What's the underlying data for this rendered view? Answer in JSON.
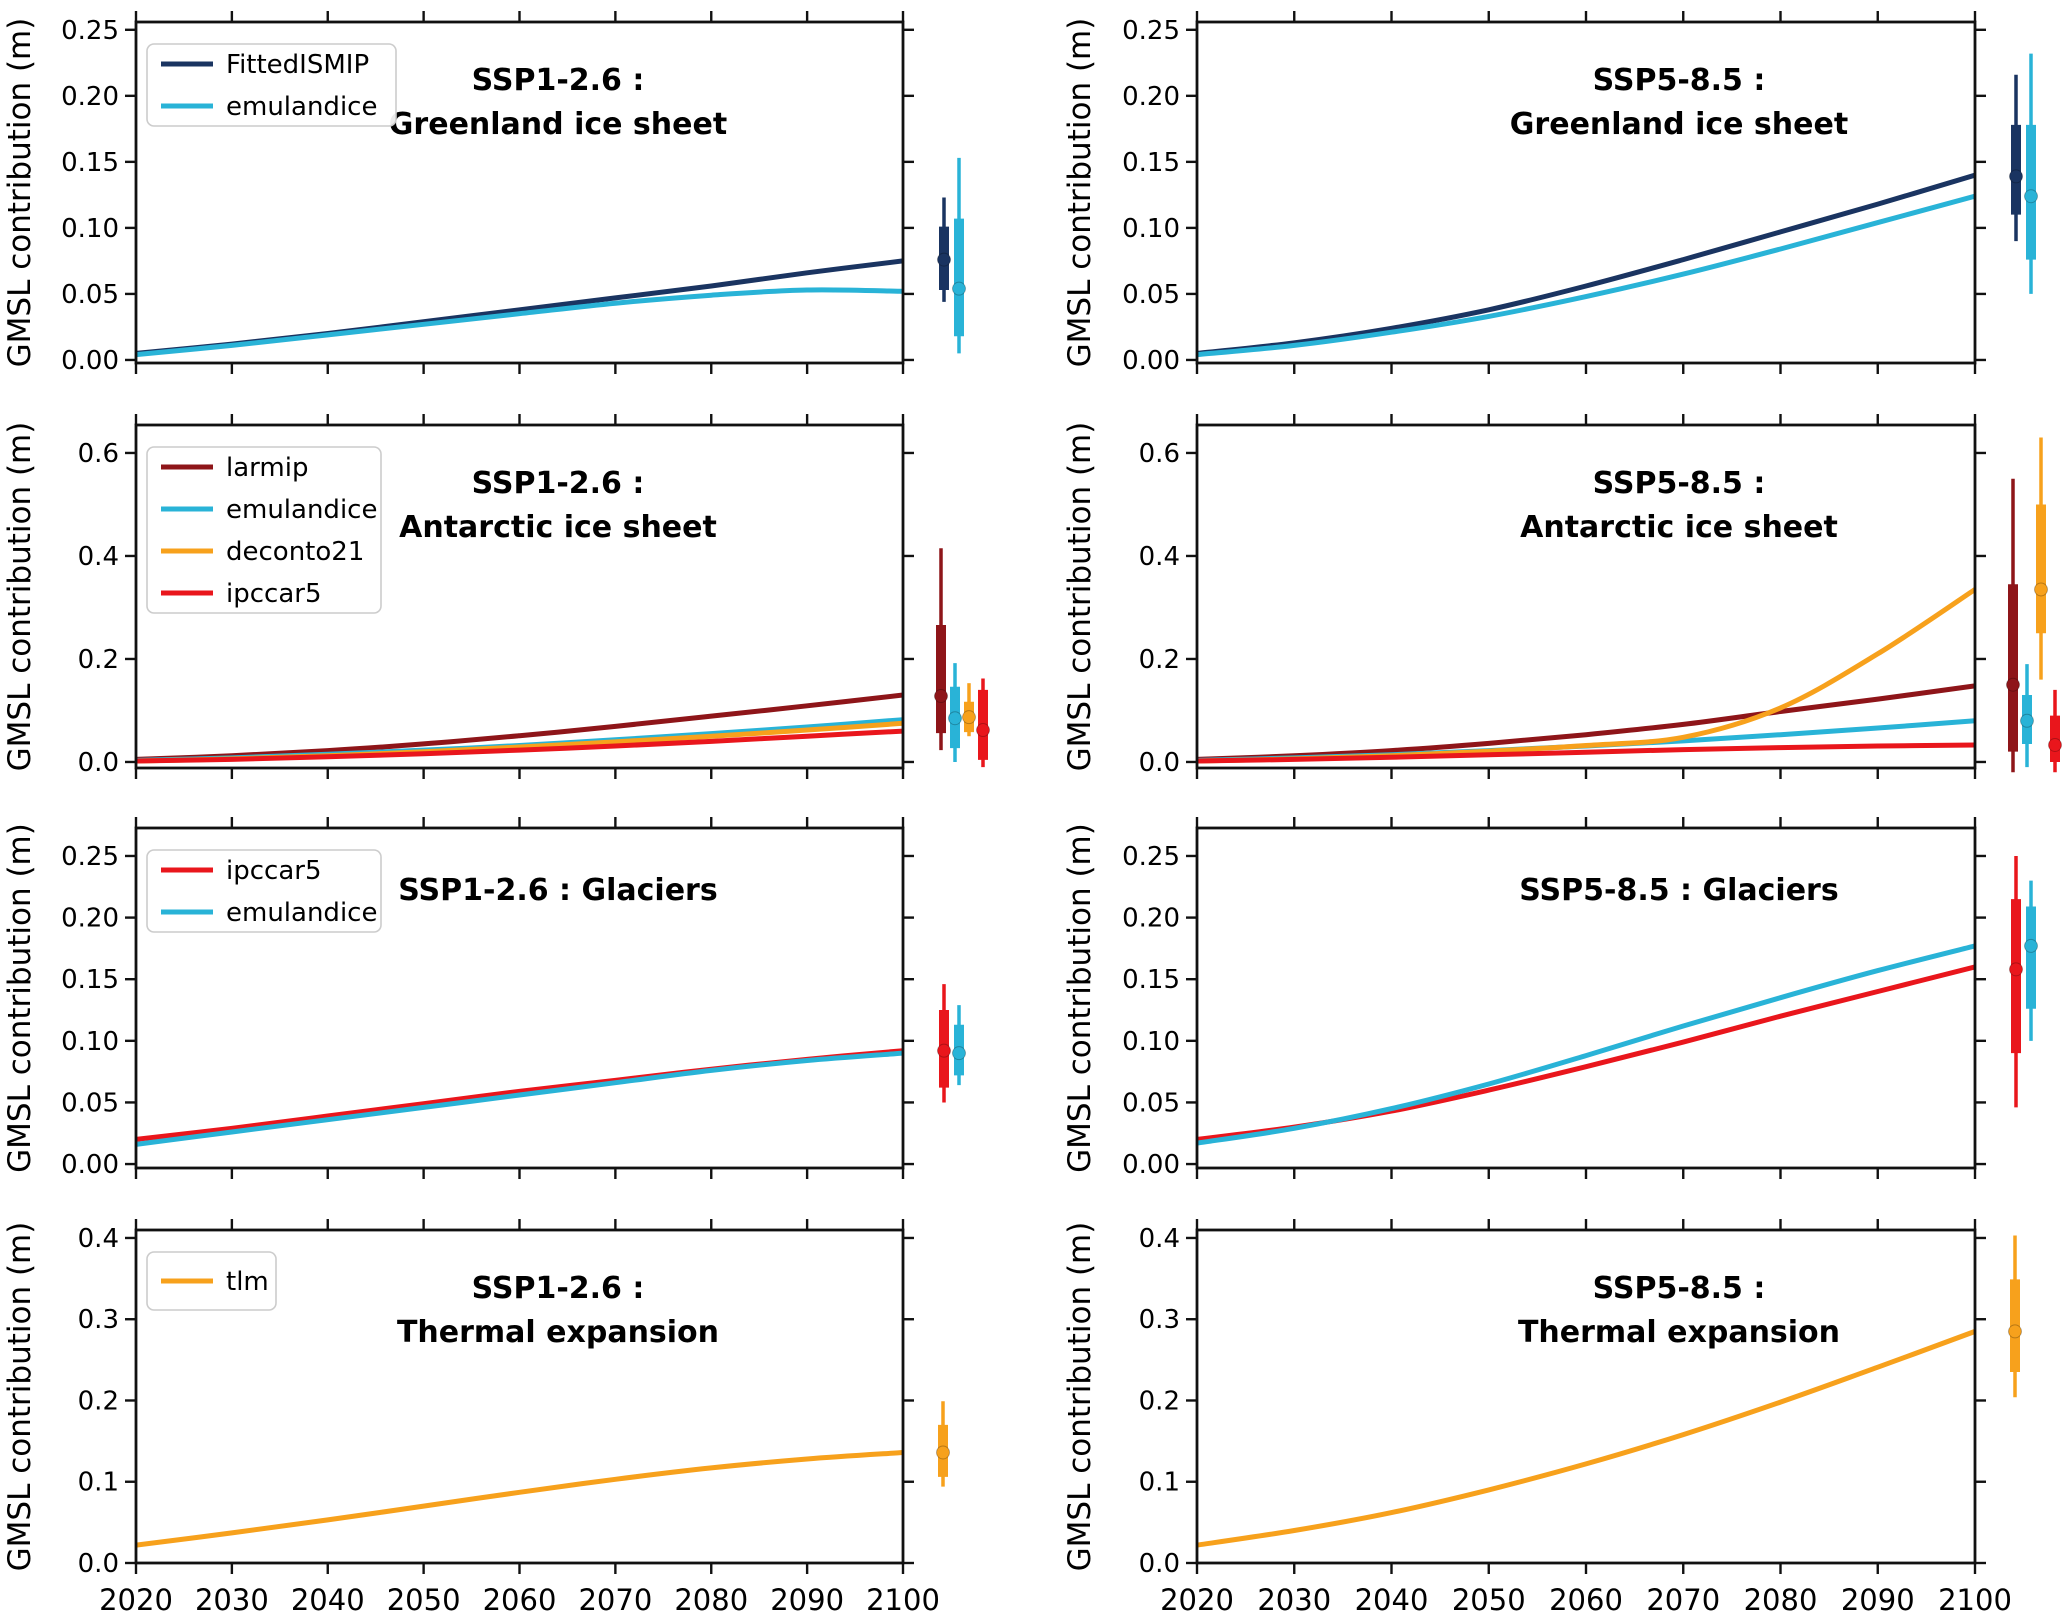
{
  "figure": {
    "ylabel": "GMSL contribution (m)",
    "x_ticks": [
      2020,
      2030,
      2040,
      2050,
      2060,
      2070,
      2080,
      2090,
      2100
    ],
    "x_tick_labels": [
      "2020",
      "2030",
      "2040",
      "2050",
      "2060",
      "2070",
      "2080",
      "2090",
      "2100"
    ],
    "colors": {
      "FittedISMIP": "#1a3461",
      "emulandice": "#29b3d7",
      "larmip": "#8e1519",
      "deconto21": "#f7a11c",
      "ipccar5": "#e9161c",
      "tlm": "#f7a11c"
    }
  },
  "chart_data": [
    {
      "type": "line",
      "id": "ssp126_greenland",
      "title": [
        "SSP1-2.6 :",
        "Greenland ice sheet"
      ],
      "ylabel": "GMSL contribution (m)",
      "xlim": [
        2020,
        2100
      ],
      "ylim": [
        0,
        0.25
      ],
      "yticks": [
        0,
        0.05,
        0.1,
        0.15,
        0.2,
        0.25
      ],
      "ytick_decimals": 2,
      "show_x_tick_labels": false,
      "legend": true,
      "x": [
        2020,
        2030,
        2040,
        2050,
        2060,
        2070,
        2080,
        2090,
        2100
      ],
      "series": [
        {
          "name": "FittedISMIP",
          "color": "#1a3461",
          "values": [
            0.005,
            0.012,
            0.02,
            0.029,
            0.038,
            0.047,
            0.056,
            0.066,
            0.075
          ],
          "errorbar": {
            "median": 0.076,
            "likely": [
              0.053,
              0.101
            ],
            "range": [
              0.044,
              0.123
            ]
          }
        },
        {
          "name": "emulandice",
          "color": "#29b3d7",
          "values": [
            0.004,
            0.011,
            0.019,
            0.027,
            0.035,
            0.043,
            0.049,
            0.053,
            0.052
          ],
          "errorbar": {
            "median": 0.054,
            "likely": [
              0.018,
              0.107
            ],
            "range": [
              0.005,
              0.153
            ]
          }
        }
      ]
    },
    {
      "type": "line",
      "id": "ssp585_greenland",
      "title": [
        "SSP5-8.5 :",
        "Greenland ice sheet"
      ],
      "ylabel": "GMSL contribution (m)",
      "xlim": [
        2020,
        2100
      ],
      "ylim": [
        0,
        0.25
      ],
      "yticks": [
        0,
        0.05,
        0.1,
        0.15,
        0.2,
        0.25
      ],
      "ytick_decimals": 2,
      "show_x_tick_labels": false,
      "legend": false,
      "x": [
        2020,
        2030,
        2040,
        2050,
        2060,
        2070,
        2080,
        2090,
        2100
      ],
      "series": [
        {
          "name": "FittedISMIP",
          "color": "#1a3461",
          "values": [
            0.005,
            0.013,
            0.024,
            0.038,
            0.056,
            0.076,
            0.097,
            0.118,
            0.14
          ],
          "errorbar": {
            "median": 0.139,
            "likely": [
              0.11,
              0.178
            ],
            "range": [
              0.09,
              0.216
            ]
          }
        },
        {
          "name": "emulandice",
          "color": "#29b3d7",
          "values": [
            0.004,
            0.011,
            0.021,
            0.033,
            0.048,
            0.065,
            0.084,
            0.104,
            0.124
          ],
          "errorbar": {
            "median": 0.124,
            "likely": [
              0.076,
              0.178
            ],
            "range": [
              0.05,
              0.232
            ]
          }
        }
      ]
    },
    {
      "type": "line",
      "id": "ssp126_antarctic",
      "title": [
        "SSP1-2.6 :",
        "Antarctic ice sheet"
      ],
      "ylabel": "GMSL contribution (m)",
      "xlim": [
        2020,
        2100
      ],
      "ylim": [
        0,
        0.6
      ],
      "yticks": [
        0,
        0.2,
        0.4,
        0.6
      ],
      "ytick_decimals": 1,
      "show_x_tick_labels": false,
      "legend": true,
      "x": [
        2020,
        2030,
        2040,
        2050,
        2060,
        2070,
        2080,
        2090,
        2100
      ],
      "series": [
        {
          "name": "larmip",
          "color": "#8e1519",
          "values": [
            0.005,
            0.012,
            0.022,
            0.035,
            0.051,
            0.069,
            0.089,
            0.109,
            0.13
          ],
          "errorbar": {
            "median": 0.128,
            "likely": [
              0.056,
              0.266
            ],
            "range": [
              0.023,
              0.415
            ]
          }
        },
        {
          "name": "emulandice",
          "color": "#29b3d7",
          "values": [
            0.003,
            0.008,
            0.015,
            0.023,
            0.032,
            0.043,
            0.055,
            0.068,
            0.082
          ],
          "errorbar": {
            "median": 0.085,
            "likely": [
              0.027,
              0.146
            ],
            "range": [
              0.0,
              0.192
            ]
          }
        },
        {
          "name": "deconto21",
          "color": "#f7a11c",
          "values": [
            0.002,
            0.006,
            0.012,
            0.02,
            0.029,
            0.039,
            0.05,
            0.062,
            0.075
          ],
          "errorbar": {
            "median": 0.087,
            "likely": [
              0.058,
              0.117
            ],
            "range": [
              0.05,
              0.153
            ]
          }
        },
        {
          "name": "ipccar5",
          "color": "#e9161c",
          "values": [
            0.002,
            0.005,
            0.01,
            0.016,
            0.023,
            0.031,
            0.04,
            0.05,
            0.06
          ],
          "errorbar": {
            "median": 0.062,
            "likely": [
              0.004,
              0.14
            ],
            "range": [
              -0.01,
              0.162
            ]
          }
        }
      ]
    },
    {
      "type": "line",
      "id": "ssp585_antarctic",
      "title": [
        "SSP5-8.5 :",
        "Antarctic ice sheet"
      ],
      "ylabel": "GMSL contribution (m)",
      "xlim": [
        2020,
        2100
      ],
      "ylim": [
        0,
        0.6
      ],
      "yticks": [
        0,
        0.2,
        0.4,
        0.6
      ],
      "ytick_decimals": 1,
      "show_x_tick_labels": false,
      "legend": false,
      "x": [
        2020,
        2030,
        2040,
        2050,
        2060,
        2070,
        2080,
        2090,
        2100
      ],
      "series": [
        {
          "name": "larmip",
          "color": "#8e1519",
          "values": [
            0.005,
            0.012,
            0.022,
            0.036,
            0.053,
            0.073,
            0.098,
            0.122,
            0.148
          ],
          "errorbar": {
            "median": 0.15,
            "likely": [
              0.02,
              0.345
            ],
            "range": [
              -0.02,
              0.55
            ]
          }
        },
        {
          "name": "emulandice",
          "color": "#29b3d7",
          "values": [
            0.003,
            0.008,
            0.014,
            0.022,
            0.031,
            0.041,
            0.053,
            0.066,
            0.08
          ],
          "errorbar": {
            "median": 0.08,
            "likely": [
              0.035,
              0.13
            ],
            "range": [
              -0.01,
              0.19
            ]
          }
        },
        {
          "name": "deconto21",
          "color": "#f7a11c",
          "values": [
            0.002,
            0.006,
            0.012,
            0.021,
            0.032,
            0.048,
            0.105,
            0.21,
            0.335
          ],
          "errorbar": {
            "median": 0.335,
            "likely": [
              0.25,
              0.5
            ],
            "range": [
              0.16,
              0.63
            ]
          }
        },
        {
          "name": "ipccar5",
          "color": "#e9161c",
          "values": [
            0.002,
            0.005,
            0.009,
            0.014,
            0.019,
            0.024,
            0.028,
            0.031,
            0.033
          ],
          "errorbar": {
            "median": 0.033,
            "likely": [
              0.0,
              0.09
            ],
            "range": [
              -0.02,
              0.14
            ]
          }
        }
      ]
    },
    {
      "type": "line",
      "id": "ssp126_glaciers",
      "title": [
        "SSP1-2.6 : Glaciers"
      ],
      "ylabel": "GMSL contribution (m)",
      "xlim": [
        2020,
        2100
      ],
      "ylim": [
        0,
        0.25
      ],
      "yticks": [
        0,
        0.05,
        0.1,
        0.15,
        0.2,
        0.25
      ],
      "ytick_decimals": 2,
      "show_x_tick_labels": false,
      "legend": true,
      "x": [
        2020,
        2030,
        2040,
        2050,
        2060,
        2070,
        2080,
        2090,
        2100
      ],
      "series": [
        {
          "name": "ipccar5",
          "color": "#e9161c",
          "values": [
            0.02,
            0.029,
            0.039,
            0.049,
            0.059,
            0.068,
            0.077,
            0.085,
            0.092
          ],
          "errorbar": {
            "median": 0.092,
            "likely": [
              0.062,
              0.125
            ],
            "range": [
              0.05,
              0.146
            ]
          }
        },
        {
          "name": "emulandice",
          "color": "#29b3d7",
          "values": [
            0.016,
            0.026,
            0.036,
            0.046,
            0.056,
            0.066,
            0.076,
            0.084,
            0.09
          ],
          "errorbar": {
            "median": 0.09,
            "likely": [
              0.072,
              0.113
            ],
            "range": [
              0.064,
              0.129
            ]
          }
        }
      ]
    },
    {
      "type": "line",
      "id": "ssp585_glaciers",
      "title": [
        "SSP5-8.5 : Glaciers"
      ],
      "ylabel": "GMSL contribution (m)",
      "xlim": [
        2020,
        2100
      ],
      "ylim": [
        0,
        0.25
      ],
      "yticks": [
        0,
        0.05,
        0.1,
        0.15,
        0.2,
        0.25
      ],
      "ytick_decimals": 2,
      "show_x_tick_labels": false,
      "legend": false,
      "x": [
        2020,
        2030,
        2040,
        2050,
        2060,
        2070,
        2080,
        2090,
        2100
      ],
      "series": [
        {
          "name": "ipccar5",
          "color": "#e9161c",
          "values": [
            0.02,
            0.03,
            0.043,
            0.06,
            0.079,
            0.099,
            0.12,
            0.14,
            0.16
          ],
          "errorbar": {
            "median": 0.158,
            "likely": [
              0.09,
              0.215
            ],
            "range": [
              0.046,
              0.25
            ]
          }
        },
        {
          "name": "emulandice",
          "color": "#29b3d7",
          "values": [
            0.017,
            0.029,
            0.045,
            0.065,
            0.088,
            0.112,
            0.135,
            0.157,
            0.177
          ],
          "errorbar": {
            "median": 0.177,
            "likely": [
              0.126,
              0.209
            ],
            "range": [
              0.1,
              0.23
            ]
          }
        }
      ]
    },
    {
      "type": "line",
      "id": "ssp126_thermal",
      "title": [
        "SSP1-2.6 :",
        "Thermal expansion"
      ],
      "ylabel": "GMSL contribution (m)",
      "xlim": [
        2020,
        2100
      ],
      "ylim": [
        0,
        0.4
      ],
      "yticks": [
        0,
        0.1,
        0.2,
        0.3,
        0.4
      ],
      "ytick_decimals": 1,
      "show_x_tick_labels": true,
      "legend": true,
      "x": [
        2020,
        2030,
        2040,
        2050,
        2060,
        2070,
        2080,
        2090,
        2100
      ],
      "series": [
        {
          "name": "tlm",
          "color": "#f7a11c",
          "values": [
            0.022,
            0.037,
            0.053,
            0.07,
            0.087,
            0.103,
            0.117,
            0.128,
            0.136
          ],
          "errorbar": {
            "median": 0.136,
            "likely": [
              0.106,
              0.17
            ],
            "range": [
              0.094,
              0.199
            ]
          }
        }
      ]
    },
    {
      "type": "line",
      "id": "ssp585_thermal",
      "title": [
        "SSP5-8.5 :",
        "Thermal expansion"
      ],
      "ylabel": "GMSL contribution (m)",
      "xlim": [
        2020,
        2100
      ],
      "ylim": [
        0,
        0.4
      ],
      "yticks": [
        0,
        0.1,
        0.2,
        0.3,
        0.4
      ],
      "ytick_decimals": 1,
      "show_x_tick_labels": true,
      "legend": false,
      "x": [
        2020,
        2030,
        2040,
        2050,
        2060,
        2070,
        2080,
        2090,
        2100
      ],
      "series": [
        {
          "name": "tlm",
          "color": "#f7a11c",
          "values": [
            0.022,
            0.04,
            0.062,
            0.09,
            0.122,
            0.158,
            0.198,
            0.241,
            0.285
          ],
          "errorbar": {
            "median": 0.285,
            "likely": [
              0.235,
              0.349
            ],
            "range": [
              0.204,
              0.403
            ]
          }
        }
      ]
    }
  ]
}
